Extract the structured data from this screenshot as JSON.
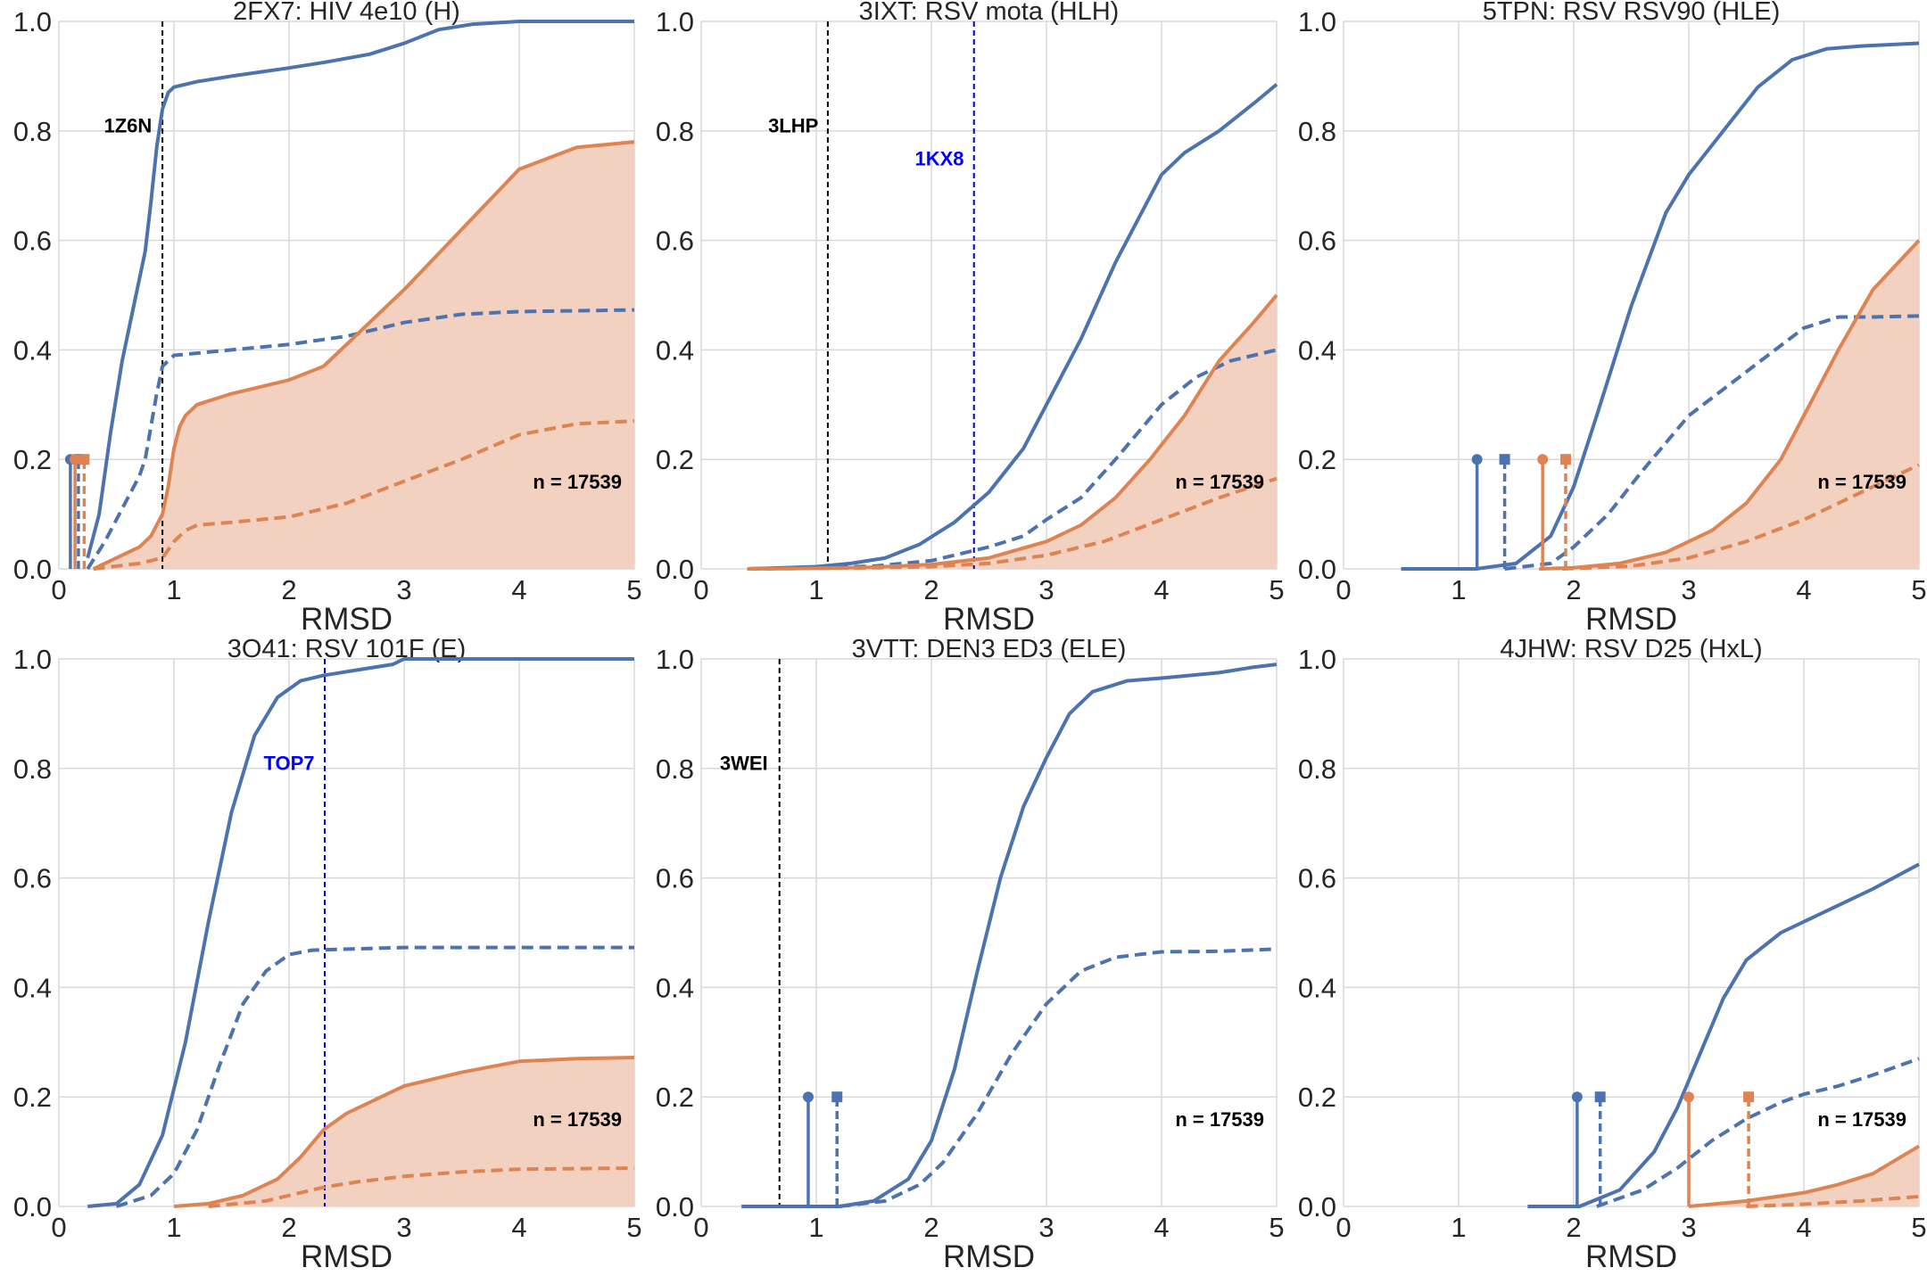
{
  "figure": {
    "colors": {
      "blue": "#4C72B0",
      "orange": "#DD8452",
      "fill": "#F3D1C0",
      "grid": "#D9D9D9",
      "black_line": "#000000",
      "blue_line": "#0000CC",
      "blue_text": "#0000FF"
    }
  },
  "chart_data": [
    {
      "type": "line",
      "title": "2FX7: HIV 4e10 (H)",
      "xlabel": "RMSD",
      "ylabel": "",
      "xlim": [
        0,
        5
      ],
      "ylim": [
        0,
        1
      ],
      "xticks": [
        "0",
        "1",
        "2",
        "3",
        "4",
        "5"
      ],
      "yticks": [
        "0.0",
        "0.2",
        "0.4",
        "0.6",
        "0.8",
        "1.0"
      ],
      "grid": true,
      "n_label": "n = 17539",
      "series": [
        {
          "color": "blue",
          "dash": false,
          "x": [
            0.25,
            0.35,
            0.45,
            0.55,
            0.65,
            0.75,
            0.8,
            0.85,
            0.9,
            0.95,
            1.0,
            1.2,
            1.5,
            2.0,
            2.3,
            2.7,
            3.0,
            3.3,
            3.6,
            4.0,
            5.0
          ],
          "y": [
            0.02,
            0.1,
            0.25,
            0.38,
            0.48,
            0.58,
            0.67,
            0.77,
            0.84,
            0.87,
            0.88,
            0.89,
            0.9,
            0.915,
            0.925,
            0.94,
            0.96,
            0.985,
            0.995,
            1.0,
            1.0
          ]
        },
        {
          "color": "blue",
          "dash": true,
          "x": [
            0.25,
            0.4,
            0.5,
            0.6,
            0.7,
            0.75,
            0.8,
            0.85,
            0.9,
            1.0,
            1.5,
            2.0,
            2.5,
            3.0,
            3.5,
            4.0,
            5.0
          ],
          "y": [
            0.0,
            0.05,
            0.09,
            0.13,
            0.17,
            0.2,
            0.26,
            0.32,
            0.37,
            0.39,
            0.4,
            0.41,
            0.425,
            0.45,
            0.465,
            0.47,
            0.473
          ]
        },
        {
          "color": "orange",
          "dash": false,
          "fill": true,
          "x": [
            0.3,
            0.4,
            0.5,
            0.6,
            0.7,
            0.8,
            0.85,
            0.9,
            0.95,
            1.0,
            1.05,
            1.1,
            1.2,
            1.5,
            2.0,
            2.3,
            2.5,
            3.0,
            3.5,
            4.0,
            4.5,
            5.0
          ],
          "y": [
            0.0,
            0.01,
            0.02,
            0.03,
            0.04,
            0.06,
            0.08,
            0.1,
            0.15,
            0.22,
            0.26,
            0.28,
            0.3,
            0.32,
            0.345,
            0.37,
            0.41,
            0.51,
            0.62,
            0.73,
            0.77,
            0.78
          ]
        },
        {
          "color": "orange",
          "dash": true,
          "x": [
            0.3,
            0.5,
            0.7,
            0.8,
            0.9,
            1.0,
            1.1,
            1.2,
            1.5,
            2.0,
            2.5,
            3.0,
            3.5,
            4.0,
            4.5,
            5.0
          ],
          "y": [
            0.0,
            0.005,
            0.01,
            0.015,
            0.02,
            0.05,
            0.07,
            0.08,
            0.085,
            0.095,
            0.12,
            0.16,
            0.2,
            0.245,
            0.265,
            0.27
          ]
        }
      ],
      "stems": [
        {
          "x": 0.1,
          "color": "blue",
          "dash": false,
          "marker": "circle",
          "y": 0.2
        },
        {
          "x": 0.17,
          "color": "blue",
          "dash": true,
          "marker": "square",
          "y": 0.2
        },
        {
          "x": 0.14,
          "color": "orange",
          "dash": false,
          "marker": "circle",
          "y": 0.2
        },
        {
          "x": 0.22,
          "color": "orange",
          "dash": true,
          "marker": "square",
          "y": 0.2
        }
      ],
      "vlines": [
        {
          "x": 0.9,
          "color": "black_line",
          "label": "1Z6N",
          "label_color": "black_line",
          "label_x": 0.6,
          "label_y": 0.81
        }
      ]
    },
    {
      "type": "line",
      "title": "3IXT: RSV mota (HLH)",
      "xlabel": "RMSD",
      "ylabel": "",
      "xlim": [
        0,
        5
      ],
      "ylim": [
        0,
        1
      ],
      "xticks": [
        "0",
        "1",
        "2",
        "3",
        "4",
        "5"
      ],
      "yticks": [
        "0.0",
        "0.2",
        "0.4",
        "0.6",
        "0.8",
        "1.0"
      ],
      "grid": true,
      "n_label": "n = 17539",
      "series": [
        {
          "color": "blue",
          "dash": false,
          "x": [
            0.4,
            1.0,
            1.3,
            1.6,
            1.9,
            2.2,
            2.5,
            2.8,
            3.0,
            3.3,
            3.6,
            3.9,
            4.0,
            4.2,
            4.5,
            4.8,
            5.0
          ],
          "y": [
            0.0,
            0.004,
            0.01,
            0.02,
            0.045,
            0.085,
            0.14,
            0.22,
            0.3,
            0.42,
            0.56,
            0.68,
            0.72,
            0.76,
            0.8,
            0.85,
            0.885
          ]
        },
        {
          "color": "blue",
          "dash": true,
          "x": [
            0.4,
            1.0,
            1.5,
            2.0,
            2.5,
            2.8,
            3.0,
            3.3,
            3.6,
            4.0,
            4.3,
            4.6,
            5.0
          ],
          "y": [
            0.0,
            0.002,
            0.005,
            0.015,
            0.04,
            0.06,
            0.09,
            0.13,
            0.2,
            0.3,
            0.35,
            0.38,
            0.4
          ]
        },
        {
          "color": "orange",
          "dash": false,
          "fill": true,
          "x": [
            0.4,
            1.0,
            1.5,
            2.0,
            2.5,
            3.0,
            3.3,
            3.6,
            3.9,
            4.2,
            4.5,
            4.8,
            5.0
          ],
          "y": [
            0.0,
            0.001,
            0.003,
            0.008,
            0.02,
            0.05,
            0.08,
            0.13,
            0.2,
            0.28,
            0.38,
            0.45,
            0.5
          ]
        },
        {
          "color": "orange",
          "dash": true,
          "x": [
            0.4,
            1.0,
            1.5,
            2.0,
            2.5,
            3.0,
            3.5,
            4.0,
            4.5,
            5.0
          ],
          "y": [
            0.0,
            0.001,
            0.002,
            0.004,
            0.01,
            0.025,
            0.05,
            0.09,
            0.13,
            0.165
          ]
        }
      ],
      "stems": [],
      "vlines": [
        {
          "x": 1.1,
          "color": "black_line",
          "label": "3LHP",
          "label_color": "black_line",
          "label_x": 0.8,
          "label_y": 0.81
        },
        {
          "x": 2.37,
          "color": "blue_line",
          "label": "1KX8",
          "label_color": "blue_text",
          "label_x": 2.07,
          "label_y": 0.75
        }
      ]
    },
    {
      "type": "line",
      "title": "5TPN: RSV RSV90 (HLE)",
      "xlabel": "RMSD",
      "ylabel": "",
      "xlim": [
        0,
        5
      ],
      "ylim": [
        0,
        1
      ],
      "xticks": [
        "0",
        "1",
        "2",
        "3",
        "4",
        "5"
      ],
      "yticks": [
        "0.0",
        "0.2",
        "0.4",
        "0.6",
        "0.8",
        "1.0"
      ],
      "grid": true,
      "n_label": "n = 17539",
      "series": [
        {
          "color": "blue",
          "dash": false,
          "x": [
            0.5,
            1.15,
            1.5,
            1.8,
            2.0,
            2.2,
            2.5,
            2.8,
            3.0,
            3.3,
            3.6,
            3.9,
            4.2,
            4.5,
            5.0
          ],
          "y": [
            0.0,
            0.0,
            0.01,
            0.06,
            0.15,
            0.28,
            0.48,
            0.65,
            0.72,
            0.8,
            0.88,
            0.93,
            0.95,
            0.955,
            0.96
          ]
        },
        {
          "color": "blue",
          "dash": true,
          "x": [
            1.4,
            1.8,
            2.0,
            2.3,
            2.6,
            3.0,
            3.5,
            4.0,
            4.3,
            4.6,
            5.0
          ],
          "y": [
            0.0,
            0.01,
            0.04,
            0.1,
            0.18,
            0.28,
            0.36,
            0.44,
            0.46,
            0.46,
            0.462
          ]
        },
        {
          "color": "orange",
          "dash": false,
          "fill": true,
          "x": [
            1.7,
            2.0,
            2.4,
            2.8,
            3.2,
            3.5,
            3.8,
            4.0,
            4.3,
            4.6,
            5.0
          ],
          "y": [
            0.0,
            0.002,
            0.01,
            0.03,
            0.07,
            0.12,
            0.2,
            0.28,
            0.4,
            0.51,
            0.6
          ]
        },
        {
          "color": "orange",
          "dash": true,
          "x": [
            1.9,
            2.5,
            3.0,
            3.5,
            4.0,
            4.5,
            5.0
          ],
          "y": [
            0.0,
            0.005,
            0.02,
            0.05,
            0.09,
            0.14,
            0.19
          ]
        }
      ],
      "stems": [
        {
          "x": 1.16,
          "color": "blue",
          "dash": false,
          "marker": "circle",
          "y": 0.2
        },
        {
          "x": 1.4,
          "color": "blue",
          "dash": true,
          "marker": "square",
          "y": 0.2
        },
        {
          "x": 1.73,
          "color": "orange",
          "dash": false,
          "marker": "circle",
          "y": 0.2
        },
        {
          "x": 1.93,
          "color": "orange",
          "dash": true,
          "marker": "square",
          "y": 0.2
        }
      ],
      "vlines": []
    },
    {
      "type": "line",
      "title": "3O41: RSV 101F (E)",
      "xlabel": "RMSD",
      "ylabel": "",
      "xlim": [
        0,
        5
      ],
      "ylim": [
        0,
        1
      ],
      "xticks": [
        "0",
        "1",
        "2",
        "3",
        "4",
        "5"
      ],
      "yticks": [
        "0.0",
        "0.2",
        "0.4",
        "0.6",
        "0.8",
        "1.0"
      ],
      "grid": true,
      "n_label": "n = 17539",
      "series": [
        {
          "color": "blue",
          "dash": false,
          "x": [
            0.25,
            0.5,
            0.7,
            0.9,
            1.1,
            1.3,
            1.5,
            1.7,
            1.9,
            2.1,
            2.3,
            2.6,
            2.9,
            3.0,
            5.0
          ],
          "y": [
            0.0,
            0.005,
            0.04,
            0.13,
            0.3,
            0.52,
            0.72,
            0.86,
            0.93,
            0.96,
            0.97,
            0.98,
            0.99,
            1.0,
            1.0
          ]
        },
        {
          "color": "blue",
          "dash": true,
          "x": [
            0.5,
            0.8,
            1.0,
            1.2,
            1.4,
            1.6,
            1.8,
            2.0,
            2.2,
            2.5,
            3.0,
            5.0
          ],
          "y": [
            0.0,
            0.02,
            0.06,
            0.14,
            0.26,
            0.37,
            0.43,
            0.46,
            0.468,
            0.47,
            0.473,
            0.473
          ]
        },
        {
          "color": "orange",
          "dash": false,
          "fill": true,
          "x": [
            1.0,
            1.3,
            1.6,
            1.9,
            2.1,
            2.3,
            2.5,
            2.8,
            3.0,
            3.5,
            4.0,
            4.5,
            5.0
          ],
          "y": [
            0.0,
            0.005,
            0.02,
            0.05,
            0.09,
            0.14,
            0.17,
            0.2,
            0.22,
            0.245,
            0.265,
            0.27,
            0.272
          ]
        },
        {
          "color": "orange",
          "dash": true,
          "x": [
            1.3,
            1.8,
            2.0,
            2.3,
            2.6,
            3.0,
            3.5,
            4.0,
            5.0
          ],
          "y": [
            0.0,
            0.01,
            0.02,
            0.035,
            0.045,
            0.055,
            0.063,
            0.068,
            0.07
          ]
        }
      ],
      "stems": [],
      "vlines": [
        {
          "x": 2.31,
          "color": "blue_line",
          "label": "TOP7",
          "label_color": "blue_text",
          "label_x": 2.0,
          "label_y": 0.81
        }
      ]
    },
    {
      "type": "line",
      "title": "3VTT: DEN3 ED3 (ELE)",
      "xlabel": "RMSD",
      "ylabel": "",
      "xlim": [
        0,
        5
      ],
      "ylim": [
        0,
        1
      ],
      "xticks": [
        "0",
        "1",
        "2",
        "3",
        "4",
        "5"
      ],
      "yticks": [
        "0.0",
        "0.2",
        "0.4",
        "0.6",
        "0.8",
        "1.0"
      ],
      "grid": true,
      "n_label": "n = 17539",
      "series": [
        {
          "color": "blue",
          "dash": false,
          "x": [
            0.35,
            1.2,
            1.5,
            1.8,
            2.0,
            2.2,
            2.4,
            2.6,
            2.8,
            3.0,
            3.2,
            3.4,
            3.7,
            4.0,
            4.5,
            4.8,
            5.0
          ],
          "y": [
            0.0,
            0.0,
            0.01,
            0.05,
            0.12,
            0.25,
            0.43,
            0.6,
            0.73,
            0.82,
            0.9,
            0.94,
            0.96,
            0.965,
            0.975,
            0.985,
            0.99
          ]
        },
        {
          "color": "blue",
          "dash": true,
          "x": [
            1.2,
            1.6,
            1.9,
            2.1,
            2.4,
            2.7,
            3.0,
            3.3,
            3.6,
            4.0,
            4.5,
            5.0
          ],
          "y": [
            0.0,
            0.01,
            0.04,
            0.08,
            0.17,
            0.28,
            0.37,
            0.43,
            0.455,
            0.465,
            0.466,
            0.47
          ]
        }
      ],
      "stems": [
        {
          "x": 0.93,
          "color": "blue",
          "dash": false,
          "marker": "circle",
          "y": 0.2
        },
        {
          "x": 1.18,
          "color": "blue",
          "dash": true,
          "marker": "square",
          "y": 0.2
        }
      ],
      "vlines": [
        {
          "x": 0.68,
          "color": "black_line",
          "label": "3WEI",
          "label_color": "black_line",
          "label_x": 0.37,
          "label_y": 0.81
        }
      ]
    },
    {
      "type": "line",
      "title": "4JHW: RSV D25 (HxL)",
      "xlabel": "RMSD",
      "ylabel": "",
      "xlim": [
        0,
        5
      ],
      "ylim": [
        0,
        1
      ],
      "xticks": [
        "0",
        "1",
        "2",
        "3",
        "4",
        "5"
      ],
      "yticks": [
        "0.0",
        "0.2",
        "0.4",
        "0.6",
        "0.8",
        "1.0"
      ],
      "grid": true,
      "n_label": "n = 17539",
      "series": [
        {
          "color": "blue",
          "dash": false,
          "x": [
            1.6,
            2.05,
            2.4,
            2.7,
            2.9,
            3.1,
            3.3,
            3.5,
            3.8,
            4.0,
            4.3,
            4.6,
            5.0
          ],
          "y": [
            0.0,
            0.0,
            0.03,
            0.1,
            0.18,
            0.28,
            0.38,
            0.45,
            0.5,
            0.52,
            0.55,
            0.58,
            0.625
          ]
        },
        {
          "color": "blue",
          "dash": true,
          "x": [
            2.2,
            2.6,
            2.9,
            3.2,
            3.5,
            3.8,
            4.0,
            4.3,
            4.6,
            5.0
          ],
          "y": [
            0.0,
            0.03,
            0.07,
            0.12,
            0.16,
            0.19,
            0.205,
            0.22,
            0.24,
            0.27
          ]
        },
        {
          "color": "orange",
          "dash": false,
          "fill": true,
          "x": [
            3.0,
            3.5,
            4.0,
            4.3,
            4.6,
            4.8,
            5.0
          ],
          "y": [
            0.0,
            0.01,
            0.025,
            0.04,
            0.06,
            0.085,
            0.11
          ]
        },
        {
          "color": "orange",
          "dash": true,
          "x": [
            3.5,
            4.0,
            4.5,
            5.0
          ],
          "y": [
            0.0,
            0.004,
            0.01,
            0.018
          ]
        }
      ],
      "stems": [
        {
          "x": 2.03,
          "color": "blue",
          "dash": false,
          "marker": "circle",
          "y": 0.2
        },
        {
          "x": 2.23,
          "color": "blue",
          "dash": true,
          "marker": "square",
          "y": 0.2
        },
        {
          "x": 3.0,
          "color": "orange",
          "dash": false,
          "marker": "circle",
          "y": 0.2
        },
        {
          "x": 3.52,
          "color": "orange",
          "dash": true,
          "marker": "square",
          "y": 0.2
        }
      ],
      "vlines": []
    }
  ]
}
